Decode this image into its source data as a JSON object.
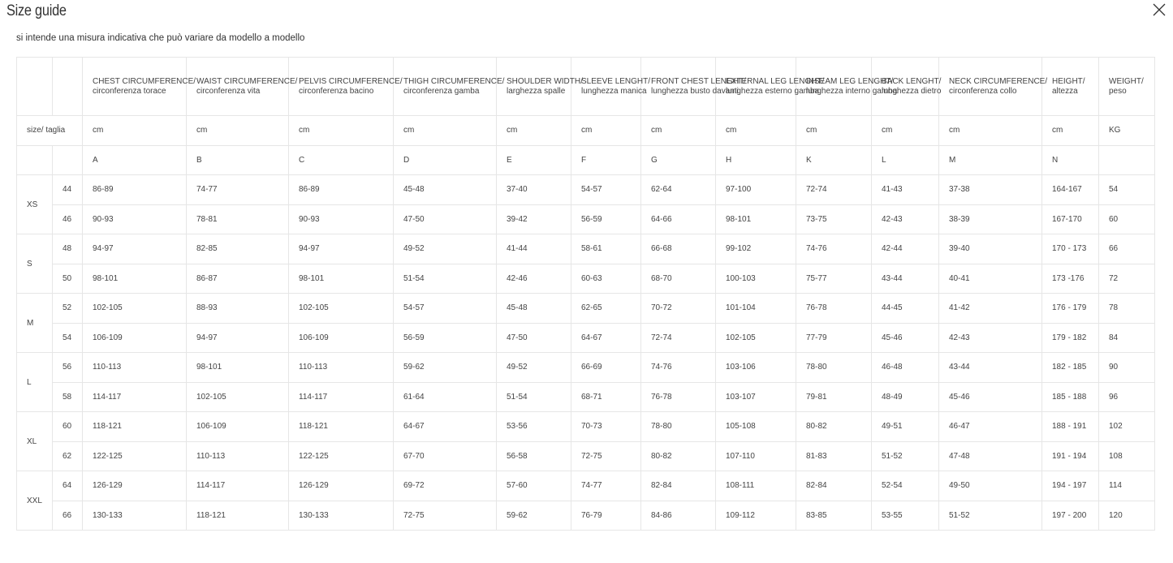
{
  "title": "Size guide",
  "close_icon": "x-close-icon",
  "subtitle": "si intende una misura indicativa che può variare da modello a modello",
  "size_label": "size/ taglia",
  "columns": [
    {
      "en": "CHEST CIRCUMFERENCE/",
      "it": "circonferenza torace",
      "unit": "cm",
      "code": "A"
    },
    {
      "en": "WAIST CIRCUMFERENCE/",
      "it": "circonferenza vita",
      "unit": "cm",
      "code": "B"
    },
    {
      "en": "PELVIS CIRCUMFERENCE/",
      "it": "circonferenza bacino",
      "unit": "cm",
      "code": "C"
    },
    {
      "en": "THIGH CIRCUMFERENCE/",
      "it": "circonferenza gamba",
      "unit": "cm",
      "code": "D"
    },
    {
      "en": "SHOULDER WIDTH/",
      "it": "larghezza spalle",
      "unit": "cm",
      "code": "E"
    },
    {
      "en": "SLEEVE LENGHT/",
      "it": "lunghezza manica",
      "unit": "cm",
      "code": "F"
    },
    {
      "en": "FRONT CHEST LENGHT/",
      "it": "lunghezza busto davanti",
      "unit": "cm",
      "code": "G"
    },
    {
      "en": "EXTERNAL LEG LENGHT/",
      "it": "lunghezza esterno gamba",
      "unit": "cm",
      "code": "H"
    },
    {
      "en": "INSEAM LEG LENGHT/",
      "it": "lunghezza interno gamba",
      "unit": "cm",
      "code": "K"
    },
    {
      "en": "BACK LENGHT/",
      "it": "lunghezza dietro",
      "unit": "cm",
      "code": "L"
    },
    {
      "en": "NECK CIRCUMFERENCE/",
      "it": "circonferenza collo",
      "unit": "cm",
      "code": "M"
    },
    {
      "en": "HEIGHT/",
      "it": "altezza",
      "unit": "cm",
      "code": "N"
    },
    {
      "en": "WEIGHT/",
      "it": "peso",
      "unit": "KG",
      "code": ""
    }
  ],
  "sizes": [
    {
      "label": "XS",
      "rows": [
        {
          "num": "44",
          "values": [
            "86-89",
            "74-77",
            "86-89",
            "45-48",
            "37-40",
            "54-57",
            "62-64",
            "97-100",
            "72-74",
            "41-43",
            "37-38",
            "164-167",
            "54"
          ]
        },
        {
          "num": "46",
          "values": [
            "90-93",
            "78-81",
            "90-93",
            "47-50",
            "39-42",
            "56-59",
            "64-66",
            "98-101",
            "73-75",
            "42-43",
            "38-39",
            "167-170",
            "60"
          ]
        }
      ]
    },
    {
      "label": "S",
      "rows": [
        {
          "num": "48",
          "values": [
            "94-97",
            "82-85",
            "94-97",
            "49-52",
            "41-44",
            "58-61",
            "66-68",
            "99-102",
            "74-76",
            "42-44",
            "39-40",
            "170 - 173",
            "66"
          ]
        },
        {
          "num": "50",
          "values": [
            "98-101",
            "86-87",
            "98-101",
            "51-54",
            "42-46",
            "60-63",
            "68-70",
            "100-103",
            "75-77",
            "43-44",
            "40-41",
            "173 -176",
            "72"
          ]
        }
      ]
    },
    {
      "label": "M",
      "rows": [
        {
          "num": "52",
          "values": [
            "102-105",
            "88-93",
            "102-105",
            "54-57",
            "45-48",
            "62-65",
            "70-72",
            "101-104",
            "76-78",
            "44-45",
            "41-42",
            "176 - 179",
            "78"
          ]
        },
        {
          "num": "54",
          "values": [
            "106-109",
            "94-97",
            "106-109",
            "56-59",
            "47-50",
            "64-67",
            "72-74",
            "102-105",
            "77-79",
            "45-46",
            "42-43",
            "179 - 182",
            "84"
          ]
        }
      ]
    },
    {
      "label": "L",
      "rows": [
        {
          "num": "56",
          "values": [
            "110-113",
            "98-101",
            "110-113",
            "59-62",
            "49-52",
            "66-69",
            "74-76",
            "103-106",
            "78-80",
            "46-48",
            "43-44",
            "182 - 185",
            "90"
          ]
        },
        {
          "num": "58",
          "values": [
            "114-117",
            "102-105",
            "114-117",
            "61-64",
            "51-54",
            "68-71",
            "76-78",
            "103-107",
            "79-81",
            "48-49",
            "45-46",
            "185 - 188",
            "96"
          ]
        }
      ]
    },
    {
      "label": "XL",
      "rows": [
        {
          "num": "60",
          "values": [
            "118-121",
            "106-109",
            "118-121",
            "64-67",
            "53-56",
            "70-73",
            "78-80",
            "105-108",
            "80-82",
            "49-51",
            "46-47",
            "188 - 191",
            "102"
          ]
        },
        {
          "num": "62",
          "values": [
            "122-125",
            "110-113",
            "122-125",
            "67-70",
            "56-58",
            "72-75",
            "80-82",
            "107-110",
            "81-83",
            "51-52",
            "47-48",
            "191 - 194",
            "108"
          ]
        }
      ]
    },
    {
      "label": "XXL",
      "rows": [
        {
          "num": "64",
          "values": [
            "126-129",
            "114-117",
            "126-129",
            "69-72",
            "57-60",
            "74-77",
            "82-84",
            "108-111",
            "82-84",
            "52-54",
            "49-50",
            "194 - 197",
            "114"
          ]
        },
        {
          "num": "66",
          "values": [
            "130-133",
            "118-121",
            "130-133",
            "72-75",
            "59-62",
            "76-79",
            "84-86",
            "109-112",
            "83-85",
            "53-55",
            "51-52",
            "197 - 200",
            "120"
          ]
        }
      ]
    }
  ]
}
